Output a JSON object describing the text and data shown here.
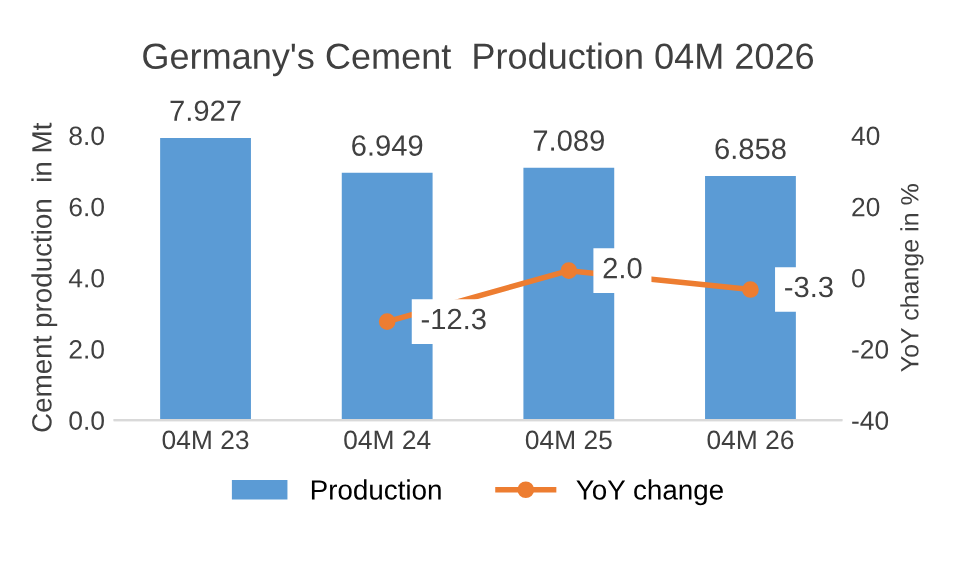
{
  "chart_data": {
    "type": "bar",
    "title": "Germany's Cement  Production 04M 2026",
    "ylabel": "Cement production  in Mt",
    "y2label": "YoY change in %",
    "categories": [
      "04M 23",
      "04M 24",
      "04M 25",
      "04M 26"
    ],
    "series": [
      {
        "name": "Production",
        "color": "#5b9bd5",
        "values": [
          7.927,
          6.949,
          7.089,
          6.858
        ]
      },
      {
        "name": "YoY change",
        "type": "line",
        "axis": "y2",
        "color": "#ed7d31",
        "marker": "circle",
        "values": [
          null,
          -12.3,
          2.0,
          -3.3
        ],
        "value_labels": [
          null,
          "-12.3",
          "2.0",
          "-3.3"
        ]
      }
    ],
    "ylim": [
      0,
      8
    ],
    "yticks": [
      {
        "value": 0,
        "label": "0.0"
      },
      {
        "value": 2,
        "label": "2.0"
      },
      {
        "value": 4,
        "label": "4.0"
      },
      {
        "value": 6,
        "label": "6.0"
      },
      {
        "value": 8,
        "label": "8.0"
      }
    ],
    "y2lim": [
      -40,
      40
    ],
    "y2ticks": [
      -40,
      -20,
      0,
      20,
      40
    ],
    "data_labels": true,
    "grid": false,
    "legend": "bottom"
  }
}
